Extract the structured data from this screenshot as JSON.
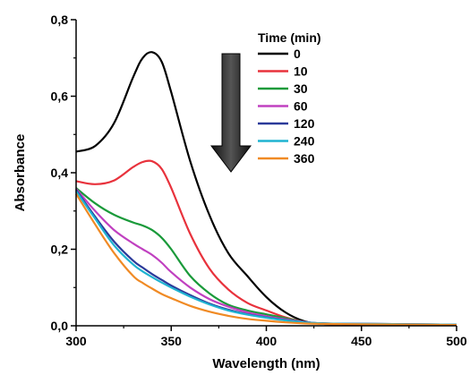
{
  "chart_data": {
    "type": "line",
    "xlabel": "Wavelength (nm)",
    "ylabel": "Absorbance",
    "xlim": [
      300,
      500
    ],
    "ylim": [
      0,
      0.8
    ],
    "x_ticks": [
      300,
      350,
      400,
      450,
      500
    ],
    "y_ticks": [
      0.0,
      0.2,
      0.4,
      0.6,
      0.8
    ],
    "x_tick_labels": [
      "300",
      "350",
      "400",
      "450",
      "500"
    ],
    "y_tick_labels": [
      "0,0",
      "0,2",
      "0,4",
      "0,6",
      "0,8"
    ],
    "grid": false,
    "legend": {
      "title": "Time (min)",
      "placement": "top-right"
    },
    "annotation": "downward arrow indicating decreasing absorbance with time",
    "x": [
      300,
      310,
      320,
      330,
      335,
      340,
      345,
      350,
      360,
      370,
      380,
      390,
      400,
      410,
      420,
      430,
      450,
      475,
      500
    ],
    "series": [
      {
        "name": "0",
        "color": "#000000",
        "values": [
          0.455,
          0.47,
          0.53,
          0.65,
          0.7,
          0.715,
          0.69,
          0.61,
          0.43,
          0.29,
          0.19,
          0.13,
          0.075,
          0.035,
          0.012,
          0.005,
          0.004,
          0.003,
          0.002
        ]
      },
      {
        "name": "10",
        "color": "#e8323c",
        "values": [
          0.378,
          0.37,
          0.38,
          0.415,
          0.428,
          0.43,
          0.41,
          0.36,
          0.24,
          0.15,
          0.095,
          0.06,
          0.04,
          0.022,
          0.01,
          0.005,
          0.004,
          0.003,
          0.002
        ]
      },
      {
        "name": "30",
        "color": "#1a9a3a",
        "values": [
          0.36,
          0.32,
          0.29,
          0.27,
          0.262,
          0.25,
          0.23,
          0.2,
          0.13,
          0.085,
          0.055,
          0.04,
          0.03,
          0.02,
          0.01,
          0.006,
          0.005,
          0.004,
          0.003
        ]
      },
      {
        "name": "60",
        "color": "#c040c0",
        "values": [
          0.358,
          0.3,
          0.25,
          0.215,
          0.2,
          0.185,
          0.165,
          0.14,
          0.1,
          0.07,
          0.05,
          0.035,
          0.025,
          0.017,
          0.01,
          0.006,
          0.005,
          0.004,
          0.003
        ]
      },
      {
        "name": "120",
        "color": "#2b3a9a",
        "values": [
          0.355,
          0.285,
          0.22,
          0.17,
          0.152,
          0.135,
          0.12,
          0.105,
          0.08,
          0.058,
          0.042,
          0.03,
          0.022,
          0.015,
          0.009,
          0.006,
          0.005,
          0.004,
          0.003
        ]
      },
      {
        "name": "240",
        "color": "#1fb3d1",
        "values": [
          0.352,
          0.28,
          0.21,
          0.16,
          0.142,
          0.127,
          0.113,
          0.1,
          0.076,
          0.056,
          0.04,
          0.029,
          0.021,
          0.014,
          0.009,
          0.006,
          0.005,
          0.004,
          0.003
        ]
      },
      {
        "name": "360",
        "color": "#f08a24",
        "values": [
          0.345,
          0.265,
          0.19,
          0.13,
          0.112,
          0.097,
          0.083,
          0.072,
          0.052,
          0.037,
          0.026,
          0.018,
          0.013,
          0.009,
          0.006,
          0.005,
          0.004,
          0.003,
          0.002
        ]
      }
    ]
  }
}
